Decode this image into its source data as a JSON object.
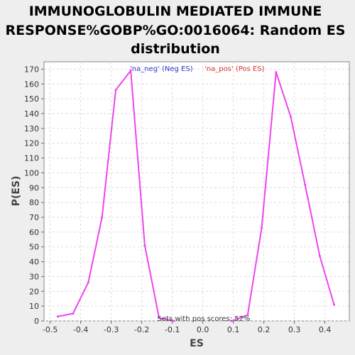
{
  "chart_data": {
    "type": "line",
    "title": "IMMUNOGLOBULIN MEDIATED IMMUNE RESPONSE%GOBP%GO:0016064: Random ES distribution",
    "title_lines": [
      "IMMUNOGLOBULIN MEDIATED IMMUNE",
      "RESPONSE%GOBP%GO:0016064: Random ES",
      "distribution"
    ],
    "xlabel": "ES",
    "ylabel": "P(ES)",
    "xlim": [
      -0.52,
      0.48
    ],
    "ylim": [
      0,
      175
    ],
    "xticks": [
      -0.5,
      -0.4,
      -0.3,
      -0.2,
      -0.1,
      0.0,
      0.1,
      0.2,
      0.3,
      0.4
    ],
    "xtick_labels": [
      "-0.5",
      "-0.4",
      "-0.3",
      "-0.2",
      "-0.1",
      "0.0",
      "0.1",
      "0.2",
      "0.3",
      "0.4"
    ],
    "yticks": [
      0,
      10,
      20,
      30,
      40,
      50,
      60,
      70,
      80,
      90,
      100,
      110,
      120,
      130,
      140,
      150,
      160,
      170
    ],
    "ytick_labels": [
      "0",
      "10",
      "20",
      "30",
      "40",
      "50",
      "60",
      "70",
      "80",
      "90",
      "100",
      "110",
      "120",
      "130",
      "140",
      "150",
      "160",
      "170"
    ],
    "grid": true,
    "legend_position": "top-center",
    "series": [
      {
        "name": "'na_neg' (Neg ES)",
        "color": "#ee44ee",
        "label_color": "#3333cc",
        "x": [
          -0.475,
          -0.425,
          -0.375,
          -0.33,
          -0.285,
          -0.236,
          -0.19,
          -0.143,
          -0.095
        ],
        "y": [
          3,
          5,
          26,
          70,
          156,
          169,
          51,
          2,
          0
        ]
      },
      {
        "name": "'na_pos' (Pos ES)",
        "color": "#ee44ee",
        "label_color": "#dd3333",
        "x": [
          0.095,
          0.147,
          0.193,
          0.24,
          0.288,
          0.335,
          0.383,
          0.43
        ],
        "y": [
          0,
          4,
          63,
          168,
          138,
          92,
          44,
          11
        ]
      }
    ],
    "annotation": "Sets with pos scores: 52%"
  }
}
